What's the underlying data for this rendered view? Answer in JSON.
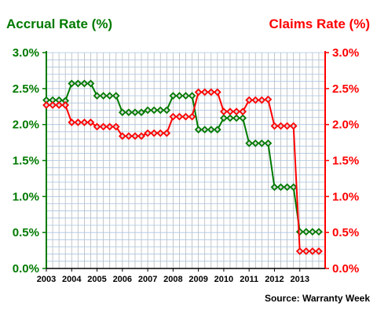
{
  "chart_data": {
    "type": "line",
    "title_left": "Accrual Rate (%)",
    "title_right": "Claims Rate (%)",
    "source": "Source: Warranty Week",
    "x_ticks": [
      "2003",
      "2004",
      "2005",
      "2006",
      "2007",
      "2008",
      "2009",
      "2010",
      "2011",
      "2012",
      "2013"
    ],
    "y_ticks_left": [
      "0.0%",
      "0.5%",
      "1.0%",
      "1.5%",
      "2.0%",
      "2.5%",
      "3.0%"
    ],
    "y_ticks_right": [
      "0.0%",
      "0.5%",
      "1.0%",
      "1.5%",
      "2.0%",
      "2.5%",
      "3.0%"
    ],
    "ylim": [
      0,
      3.0
    ],
    "xlim": [
      2003,
      2014
    ],
    "grid": true,
    "colors": {
      "accrual": "#007a00",
      "claims": "#ff0000",
      "grid_h": "#a9c4e0",
      "grid_v": "#b8b8b8",
      "marker_fill": "#d8d8d8"
    },
    "series": [
      {
        "key": "accrual",
        "points": [
          [
            2003.0,
            2.34
          ],
          [
            2003.25,
            2.34
          ],
          [
            2003.5,
            2.34
          ],
          [
            2003.75,
            2.33
          ],
          [
            2004.0,
            2.57
          ],
          [
            2004.25,
            2.57
          ],
          [
            2004.5,
            2.57
          ],
          [
            2004.75,
            2.57
          ],
          [
            2005.0,
            2.4
          ],
          [
            2005.25,
            2.4
          ],
          [
            2005.5,
            2.4
          ],
          [
            2005.75,
            2.4
          ],
          [
            2006.0,
            2.17
          ],
          [
            2006.25,
            2.17
          ],
          [
            2006.5,
            2.17
          ],
          [
            2006.75,
            2.17
          ],
          [
            2007.0,
            2.2
          ],
          [
            2007.25,
            2.2
          ],
          [
            2007.5,
            2.2
          ],
          [
            2007.75,
            2.2
          ],
          [
            2008.0,
            2.4
          ],
          [
            2008.25,
            2.4
          ],
          [
            2008.5,
            2.4
          ],
          [
            2008.75,
            2.4
          ],
          [
            2009.0,
            1.93
          ],
          [
            2009.25,
            1.93
          ],
          [
            2009.5,
            1.93
          ],
          [
            2009.75,
            1.93
          ],
          [
            2010.0,
            2.09
          ],
          [
            2010.25,
            2.09
          ],
          [
            2010.5,
            2.09
          ],
          [
            2010.75,
            2.09
          ],
          [
            2011.0,
            1.74
          ],
          [
            2011.25,
            1.74
          ],
          [
            2011.5,
            1.74
          ],
          [
            2011.75,
            1.74
          ],
          [
            2012.0,
            1.13
          ],
          [
            2012.25,
            1.13
          ],
          [
            2012.5,
            1.13
          ],
          [
            2012.75,
            1.13
          ],
          [
            2013.0,
            0.51
          ],
          [
            2013.25,
            0.51
          ],
          [
            2013.5,
            0.51
          ],
          [
            2013.75,
            0.51
          ]
        ]
      },
      {
        "key": "claims",
        "points": [
          [
            2003.0,
            2.27
          ],
          [
            2003.25,
            2.27
          ],
          [
            2003.5,
            2.27
          ],
          [
            2003.75,
            2.27
          ],
          [
            2004.0,
            2.03
          ],
          [
            2004.25,
            2.03
          ],
          [
            2004.5,
            2.03
          ],
          [
            2004.75,
            2.03
          ],
          [
            2005.0,
            1.97
          ],
          [
            2005.25,
            1.97
          ],
          [
            2005.5,
            1.97
          ],
          [
            2005.75,
            1.97
          ],
          [
            2006.0,
            1.84
          ],
          [
            2006.25,
            1.84
          ],
          [
            2006.5,
            1.84
          ],
          [
            2006.75,
            1.84
          ],
          [
            2007.0,
            1.88
          ],
          [
            2007.25,
            1.88
          ],
          [
            2007.5,
            1.88
          ],
          [
            2007.75,
            1.88
          ],
          [
            2008.0,
            2.11
          ],
          [
            2008.25,
            2.11
          ],
          [
            2008.5,
            2.11
          ],
          [
            2008.75,
            2.11
          ],
          [
            2009.0,
            2.45
          ],
          [
            2009.25,
            2.45
          ],
          [
            2009.5,
            2.45
          ],
          [
            2009.75,
            2.45
          ],
          [
            2010.0,
            2.18
          ],
          [
            2010.25,
            2.18
          ],
          [
            2010.5,
            2.18
          ],
          [
            2010.75,
            2.18
          ],
          [
            2011.0,
            2.34
          ],
          [
            2011.25,
            2.34
          ],
          [
            2011.5,
            2.34
          ],
          [
            2011.75,
            2.35
          ],
          [
            2012.0,
            1.98
          ],
          [
            2012.25,
            1.98
          ],
          [
            2012.5,
            1.98
          ],
          [
            2012.75,
            1.98
          ],
          [
            2013.0,
            0.24
          ],
          [
            2013.25,
            0.24
          ],
          [
            2013.5,
            0.24
          ],
          [
            2013.75,
            0.24
          ]
        ]
      }
    ]
  }
}
